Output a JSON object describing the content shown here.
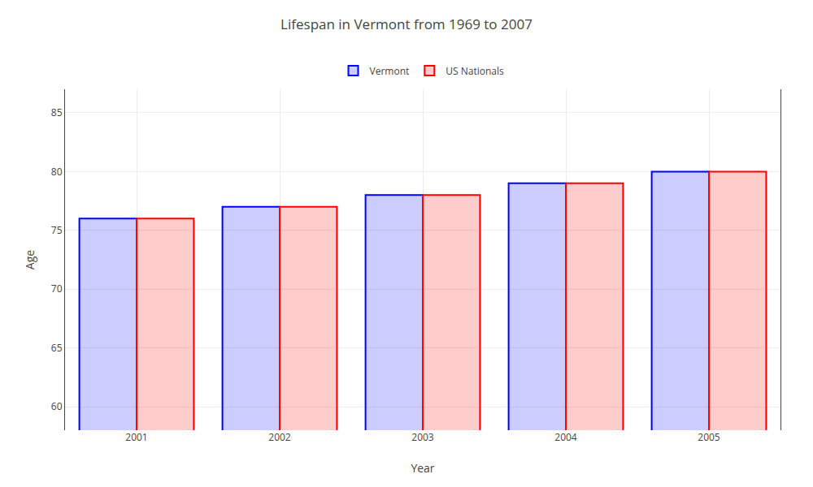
{
  "chart_data": {
    "type": "bar",
    "title": "Lifespan in Vermont from 1969 to 2007",
    "xlabel": "Year",
    "ylabel": "Age",
    "categories": [
      "2001",
      "2002",
      "2003",
      "2004",
      "2005"
    ],
    "series": [
      {
        "name": "Vermont",
        "color": "#0000ff",
        "values": [
          76,
          77,
          78,
          79,
          80
        ]
      },
      {
        "name": "US Nationals",
        "color": "#ff0000",
        "values": [
          76,
          77,
          78,
          79,
          80
        ]
      }
    ],
    "ylim": [
      58,
      87
    ],
    "yticks": [
      60,
      65,
      70,
      75,
      80,
      85
    ],
    "grid": true,
    "legend": "top"
  }
}
